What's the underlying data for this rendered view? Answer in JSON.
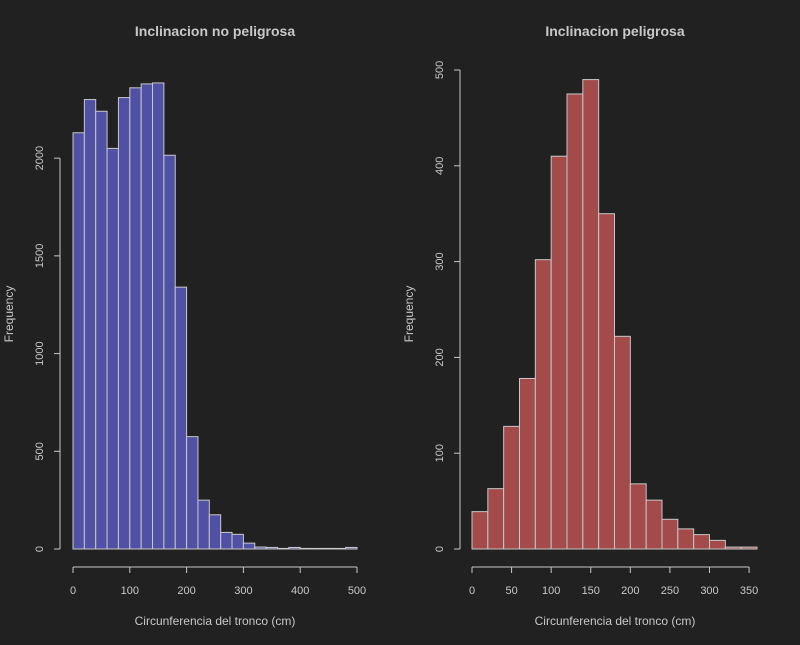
{
  "chart_data": [
    {
      "type": "bar",
      "title": "Inclinacion no peligrosa",
      "xlabel": "Circunferencia del tronco (cm)",
      "ylabel": "Frequency",
      "bar_color": "#5050a5",
      "bin_width": 20,
      "x": [
        0,
        20,
        40,
        60,
        80,
        100,
        120,
        140,
        160,
        180,
        200,
        220,
        240,
        260,
        280,
        300,
        320,
        340,
        360,
        380,
        400,
        420,
        440,
        460,
        480
      ],
      "values": [
        2130,
        2300,
        2240,
        2050,
        2310,
        2360,
        2380,
        2385,
        2015,
        1340,
        575,
        250,
        175,
        85,
        75,
        30,
        10,
        8,
        3,
        8,
        3,
        3,
        3,
        3,
        8
      ],
      "xlim": [
        0,
        500
      ],
      "ylim": [
        0,
        2400
      ],
      "xticks": [
        0,
        100,
        200,
        300,
        400,
        500
      ],
      "yticks": [
        0,
        500,
        1000,
        1500,
        2000
      ],
      "legend": false,
      "grid": false
    },
    {
      "type": "bar",
      "title": "Inclinacion peligrosa",
      "xlabel": "Circunferencia del tronco (cm)",
      "ylabel": "Frequency",
      "bar_color": "#a34a4a",
      "bin_width": 20,
      "x": [
        0,
        20,
        40,
        60,
        80,
        100,
        120,
        140,
        160,
        180,
        200,
        220,
        240,
        260,
        280,
        300,
        320,
        340
      ],
      "values": [
        39,
        63,
        128,
        178,
        302,
        410,
        475,
        490,
        350,
        222,
        68,
        51,
        31,
        21,
        15,
        9,
        2,
        2
      ],
      "xlim": [
        0,
        360
      ],
      "ylim": [
        0,
        500
      ],
      "xticks": [
        0,
        50,
        100,
        150,
        200,
        250,
        300,
        350
      ],
      "yticks": [
        0,
        100,
        200,
        300,
        400,
        500
      ],
      "legend": false,
      "grid": false
    }
  ]
}
